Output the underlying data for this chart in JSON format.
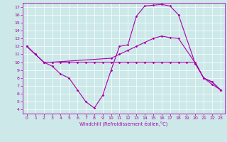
{
  "xlabel": "Windchill (Refroidissement éolien,°C)",
  "xlim": [
    -0.5,
    23.5
  ],
  "ylim": [
    3.5,
    17.5
  ],
  "xticks": [
    0,
    1,
    2,
    3,
    4,
    5,
    6,
    7,
    8,
    9,
    10,
    11,
    12,
    13,
    14,
    15,
    16,
    17,
    18,
    19,
    20,
    21,
    22,
    23
  ],
  "yticks": [
    4,
    5,
    6,
    7,
    8,
    9,
    10,
    11,
    12,
    13,
    14,
    15,
    16,
    17
  ],
  "background_color": "#cce8e8",
  "line_color": "#aa00aa",
  "grid_color": "#ffffff",
  "line1_x": [
    0,
    1,
    2,
    3,
    4,
    5,
    6,
    7,
    8,
    9,
    10,
    11,
    12,
    13,
    14,
    15,
    16,
    17,
    18,
    20,
    21,
    22,
    23
  ],
  "line1_y": [
    12,
    11,
    10,
    9.5,
    8.5,
    8.0,
    6.5,
    5.0,
    4.2,
    5.8,
    9.0,
    12.0,
    12.2,
    15.8,
    17.1,
    17.2,
    17.3,
    17.1,
    16.0,
    9.8,
    8.0,
    7.2,
    6.5
  ],
  "line2_x": [
    0,
    1,
    2,
    3,
    10,
    11,
    12,
    13,
    14,
    15,
    16,
    17,
    18,
    20,
    21,
    22,
    23
  ],
  "line2_y": [
    12,
    11,
    10,
    10,
    10.5,
    11.0,
    11.5,
    12.0,
    12.5,
    13.0,
    13.3,
    13.1,
    13.0,
    9.9,
    8.0,
    7.5,
    6.5
  ],
  "line3_x": [
    0,
    1,
    2,
    3,
    4,
    5,
    6,
    7,
    8,
    9,
    10,
    11,
    12,
    13,
    14,
    15,
    16,
    17,
    18,
    19,
    20,
    21,
    22,
    23
  ],
  "line3_y": [
    12,
    11,
    10,
    10,
    10,
    10,
    10,
    10,
    10,
    10,
    10,
    10,
    10,
    10,
    10,
    10,
    10,
    10,
    10,
    10,
    10,
    8.0,
    7.5,
    6.5
  ]
}
